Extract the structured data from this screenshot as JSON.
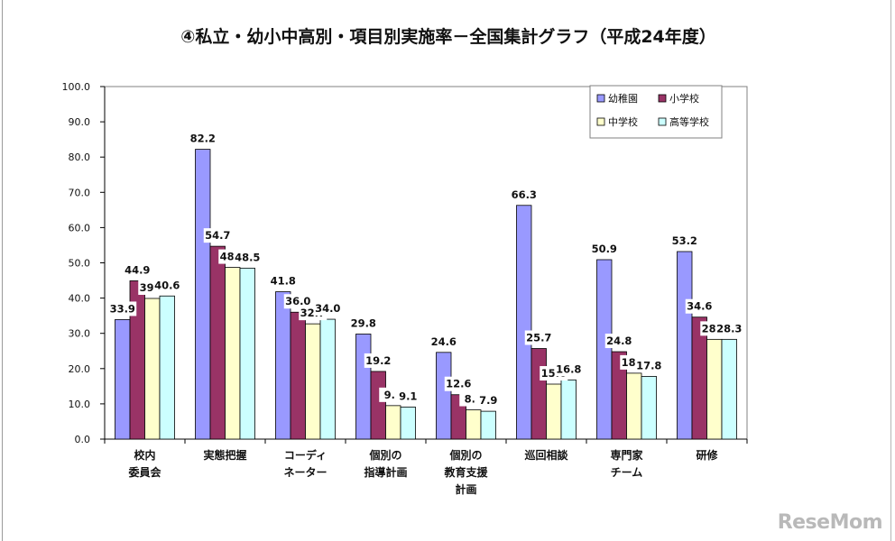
{
  "chart_data": {
    "type": "bar",
    "title": "④私立・幼小中高別・項目別実施率－全国集計グラフ（平成24年度）",
    "categories": [
      [
        "校内",
        "委員会"
      ],
      [
        "実態把握"
      ],
      [
        "コーディ",
        "ネーター"
      ],
      [
        "個別の",
        "指導計画"
      ],
      [
        "個別の",
        "教育支援",
        "計画"
      ],
      [
        "巡回相談"
      ],
      [
        "専門家",
        "チーム"
      ],
      [
        "研修"
      ]
    ],
    "series": [
      {
        "name": "幼稚園",
        "color": "#9999ff",
        "values": [
          33.9,
          82.2,
          41.8,
          29.8,
          24.6,
          66.3,
          50.9,
          53.2
        ]
      },
      {
        "name": "小学校",
        "color": "#993366",
        "values": [
          44.9,
          54.7,
          36.0,
          19.2,
          12.6,
          25.7,
          24.8,
          34.6
        ]
      },
      {
        "name": "中学校",
        "color": "#ffffcc",
        "values": [
          39.9,
          48.7,
          32.7,
          9.5,
          8.3,
          15.6,
          18.7,
          28.3
        ]
      },
      {
        "name": "高等学校",
        "color": "#ccffff",
        "values": [
          40.6,
          48.5,
          34.0,
          9.1,
          7.9,
          16.8,
          17.8,
          28.3
        ]
      }
    ],
    "yticks": [
      "0.0",
      "10.0",
      "20.0",
      "30.0",
      "40.0",
      "50.0",
      "60.0",
      "70.0",
      "80.0",
      "90.0",
      "100.0"
    ],
    "ylim": [
      0,
      100
    ],
    "grid": false,
    "legend": "top-right"
  },
  "watermark": "ReseMom"
}
